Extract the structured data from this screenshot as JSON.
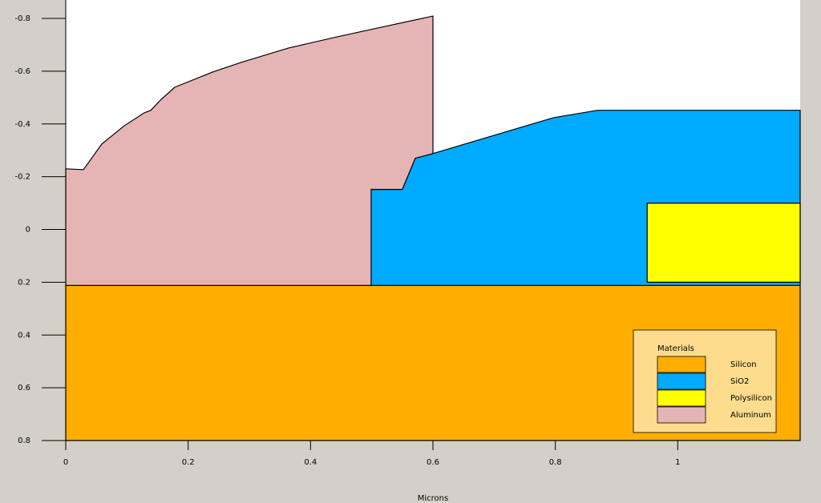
{
  "chart_data": {
    "type": "region",
    "xlabel": "Microns",
    "xlim": [
      0,
      1.2
    ],
    "xticks": [
      0,
      0.2,
      0.4,
      0.6,
      0.8,
      1
    ],
    "ylim": [
      -0.87,
      0.8
    ],
    "yticks": [
      -0.8,
      -0.6,
      -0.4,
      -0.2,
      0,
      0.2,
      0.4,
      0.6,
      0.8
    ],
    "y_inverted": true,
    "legend_title": "Materials",
    "legend": "lower right",
    "series": [
      {
        "name": "Silicon",
        "color": "#ffae00",
        "x": [
          0,
          1.2,
          1.2,
          0
        ],
        "y": [
          0.212,
          0.212,
          0.8,
          0.8
        ]
      },
      {
        "name": "SiO2",
        "color": "#00aaff",
        "x": [
          0.499,
          0.55,
          0.571,
          0.6,
          0.797,
          0.869,
          1.2,
          1.2,
          0.499
        ],
        "y": [
          -0.152,
          -0.152,
          -0.27,
          -0.288,
          -0.424,
          -0.452,
          -0.452,
          0.212,
          0.212
        ]
      },
      {
        "name": "Polysilicon",
        "color": "#ffff00",
        "x": [
          0.95,
          1.2,
          1.2,
          0.95
        ],
        "y": [
          -0.1,
          -0.1,
          0.2,
          0.2
        ]
      },
      {
        "name": "Aluminum",
        "color": "#e5b5b5",
        "x": [
          0,
          0.029,
          0.059,
          0.096,
          0.128,
          0.139,
          0.155,
          0.178,
          0.24,
          0.286,
          0.364,
          0.443,
          0.522,
          0.6,
          0.6,
          0.571,
          0.55,
          0.499,
          0.499,
          0
        ],
        "y": [
          -0.23,
          -0.227,
          -0.324,
          -0.394,
          -0.442,
          -0.452,
          -0.491,
          -0.539,
          -0.597,
          -0.633,
          -0.688,
          -0.73,
          -0.77,
          -0.809,
          -0.288,
          -0.27,
          -0.152,
          -0.152,
          0.212,
          0.212
        ]
      }
    ]
  }
}
